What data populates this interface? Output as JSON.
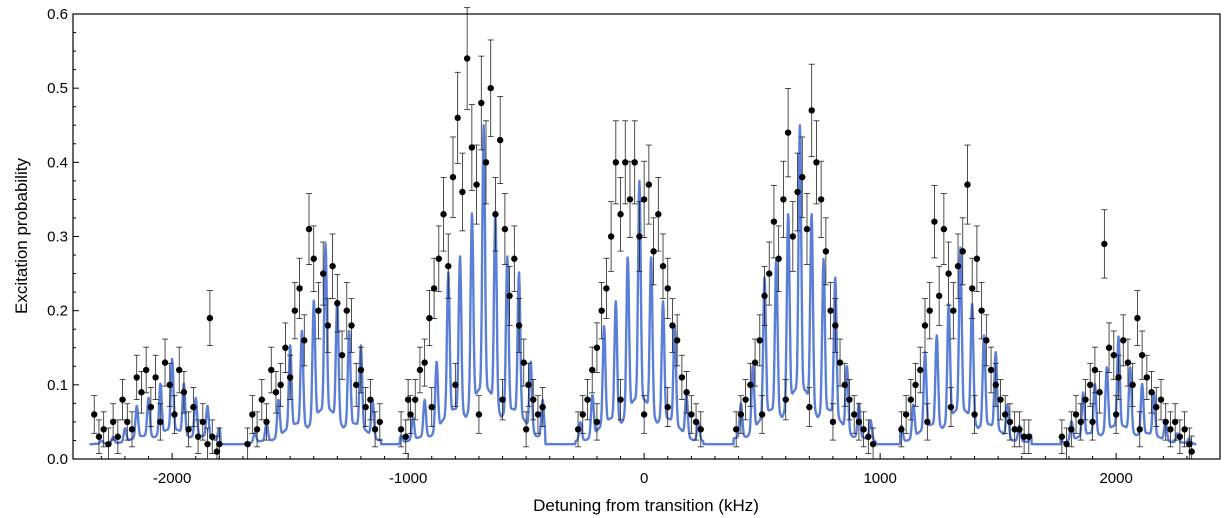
{
  "chart_data": {
    "type": "scatter",
    "xlabel": "Detuning from transition (kHz)",
    "ylabel": "Excitation probability",
    "xlim": [
      -2420,
      2440
    ],
    "ylim": [
      0,
      0.6
    ],
    "x_ticks": [
      -2000,
      -1000,
      0,
      1000,
      2000
    ],
    "x_tick_labels": [
      "-2000",
      "-1000",
      "0",
      "1000",
      "2000"
    ],
    "y_ticks": [
      0,
      0.1,
      0.2,
      0.3,
      0.4,
      0.5,
      0.6
    ],
    "y_tick_labels": [
      "0.0",
      "0.1",
      "0.2",
      "0.3",
      "0.4",
      "0.5",
      "0.6"
    ],
    "grid": false,
    "legend": "none",
    "colors": {
      "fit": "#5b7fd6",
      "data": "#000000",
      "axes": "#000000"
    },
    "fit_baseline": 0.02,
    "fit_sideband_spacing": 50,
    "sidebands": [
      {
        "center": -2000,
        "window": [
          -2335,
          -1795
        ],
        "peak": 0.135
      },
      {
        "center": -1350,
        "window": [
          -1690,
          -1115
        ],
        "peak": 0.29
      },
      {
        "center": -680,
        "window": [
          -1035,
          -420
        ],
        "peak": 0.45
      },
      {
        "center": -20,
        "window": [
          -290,
          250
        ],
        "peak": 0.375
      },
      {
        "center": 660,
        "window": [
          380,
          980
        ],
        "peak": 0.45
      },
      {
        "center": 1340,
        "window": [
          1085,
          1640
        ],
        "peak": 0.285
      },
      {
        "center": 2010,
        "window": [
          1765,
          2330
        ],
        "peak": 0.165
      }
    ],
    "data_points": [
      [
        -2330,
        0.06
      ],
      [
        -2310,
        0.03
      ],
      [
        -2290,
        0.04
      ],
      [
        -2270,
        0.02
      ],
      [
        -2250,
        0.05
      ],
      [
        -2230,
        0.03
      ],
      [
        -2210,
        0.08
      ],
      [
        -2190,
        0.05
      ],
      [
        -2170,
        0.04
      ],
      [
        -2150,
        0.11
      ],
      [
        -2130,
        0.09
      ],
      [
        -2110,
        0.12
      ],
      [
        -2090,
        0.07
      ],
      [
        -2070,
        0.11
      ],
      [
        -2050,
        0.05
      ],
      [
        -2030,
        0.13
      ],
      [
        -2010,
        0.1
      ],
      [
        -1990,
        0.06
      ],
      [
        -1970,
        0.12
      ],
      [
        -1950,
        0.09
      ],
      [
        -1930,
        0.04
      ],
      [
        -1910,
        0.07
      ],
      [
        -1890,
        0.03
      ],
      [
        -1870,
        0.05
      ],
      [
        -1850,
        0.02
      ],
      [
        -1830,
        0.03
      ],
      [
        -1810,
        0.01
      ],
      [
        -1800,
        0.02
      ],
      [
        -1840,
        0.19
      ],
      [
        -1680,
        0.02
      ],
      [
        -1660,
        0.06
      ],
      [
        -1640,
        0.04
      ],
      [
        -1620,
        0.08
      ],
      [
        -1600,
        0.05
      ],
      [
        -1580,
        0.12
      ],
      [
        -1560,
        0.09
      ],
      [
        -1540,
        0.1
      ],
      [
        -1520,
        0.15
      ],
      [
        -1500,
        0.11
      ],
      [
        -1480,
        0.2
      ],
      [
        -1460,
        0.23
      ],
      [
        -1440,
        0.16
      ],
      [
        -1420,
        0.31
      ],
      [
        -1400,
        0.27
      ],
      [
        -1380,
        0.2
      ],
      [
        -1360,
        0.25
      ],
      [
        -1340,
        0.18
      ],
      [
        -1320,
        0.26
      ],
      [
        -1300,
        0.21
      ],
      [
        -1280,
        0.14
      ],
      [
        -1260,
        0.2
      ],
      [
        -1240,
        0.18
      ],
      [
        -1220,
        0.1
      ],
      [
        -1200,
        0.12
      ],
      [
        -1180,
        0.07
      ],
      [
        -1160,
        0.08
      ],
      [
        -1140,
        0.04
      ],
      [
        -1120,
        0.05
      ],
      [
        -1030,
        0.04
      ],
      [
        -1010,
        0.03
      ],
      [
        -990,
        0.06
      ],
      [
        -970,
        0.08
      ],
      [
        -950,
        0.12
      ],
      [
        -930,
        0.13
      ],
      [
        -910,
        0.19
      ],
      [
        -890,
        0.23
      ],
      [
        -870,
        0.27
      ],
      [
        -850,
        0.33
      ],
      [
        -830,
        0.26
      ],
      [
        -810,
        0.38
      ],
      [
        -790,
        0.46
      ],
      [
        -770,
        0.36
      ],
      [
        -750,
        0.54
      ],
      [
        -730,
        0.42
      ],
      [
        -710,
        0.37
      ],
      [
        -690,
        0.48
      ],
      [
        -670,
        0.4
      ],
      [
        -650,
        0.5
      ],
      [
        -630,
        0.33
      ],
      [
        -610,
        0.43
      ],
      [
        -590,
        0.31
      ],
      [
        -570,
        0.22
      ],
      [
        -550,
        0.27
      ],
      [
        -530,
        0.18
      ],
      [
        -510,
        0.13
      ],
      [
        -490,
        0.1
      ],
      [
        -470,
        0.08
      ],
      [
        -450,
        0.06
      ],
      [
        -430,
        0.07
      ],
      [
        -1000,
        0.08
      ],
      [
        -900,
        0.07
      ],
      [
        -800,
        0.1
      ],
      [
        -700,
        0.06
      ],
      [
        -600,
        0.08
      ],
      [
        -500,
        0.04
      ],
      [
        -280,
        0.04
      ],
      [
        -260,
        0.06
      ],
      [
        -240,
        0.08
      ],
      [
        -220,
        0.12
      ],
      [
        -200,
        0.15
      ],
      [
        -180,
        0.2
      ],
      [
        -160,
        0.23
      ],
      [
        -140,
        0.3
      ],
      [
        -120,
        0.4
      ],
      [
        -100,
        0.33
      ],
      [
        -80,
        0.4
      ],
      [
        -60,
        0.35
      ],
      [
        -40,
        0.4
      ],
      [
        -20,
        0.3
      ],
      [
        0,
        0.35
      ],
      [
        20,
        0.37
      ],
      [
        40,
        0.28
      ],
      [
        60,
        0.33
      ],
      [
        80,
        0.26
      ],
      [
        100,
        0.23
      ],
      [
        120,
        0.18
      ],
      [
        140,
        0.16
      ],
      [
        160,
        0.11
      ],
      [
        180,
        0.09
      ],
      [
        200,
        0.06
      ],
      [
        220,
        0.05
      ],
      [
        240,
        0.04
      ],
      [
        -200,
        0.05
      ],
      [
        -100,
        0.08
      ],
      [
        0,
        0.06
      ],
      [
        100,
        0.07
      ],
      [
        390,
        0.04
      ],
      [
        410,
        0.06
      ],
      [
        430,
        0.08
      ],
      [
        450,
        0.1
      ],
      [
        470,
        0.13
      ],
      [
        490,
        0.16
      ],
      [
        510,
        0.22
      ],
      [
        530,
        0.25
      ],
      [
        550,
        0.32
      ],
      [
        570,
        0.27
      ],
      [
        590,
        0.35
      ],
      [
        610,
        0.44
      ],
      [
        630,
        0.3
      ],
      [
        650,
        0.36
      ],
      [
        670,
        0.38
      ],
      [
        690,
        0.31
      ],
      [
        710,
        0.47
      ],
      [
        730,
        0.4
      ],
      [
        750,
        0.35
      ],
      [
        770,
        0.28
      ],
      [
        790,
        0.2
      ],
      [
        810,
        0.18
      ],
      [
        830,
        0.13
      ],
      [
        850,
        0.1
      ],
      [
        870,
        0.08
      ],
      [
        890,
        0.06
      ],
      [
        910,
        0.05
      ],
      [
        930,
        0.04
      ],
      [
        950,
        0.03
      ],
      [
        970,
        0.02
      ],
      [
        500,
        0.06
      ],
      [
        600,
        0.08
      ],
      [
        700,
        0.07
      ],
      [
        800,
        0.05
      ],
      [
        1090,
        0.04
      ],
      [
        1110,
        0.06
      ],
      [
        1130,
        0.08
      ],
      [
        1150,
        0.1
      ],
      [
        1170,
        0.12
      ],
      [
        1190,
        0.18
      ],
      [
        1210,
        0.2
      ],
      [
        1230,
        0.32
      ],
      [
        1250,
        0.22
      ],
      [
        1270,
        0.31
      ],
      [
        1290,
        0.25
      ],
      [
        1310,
        0.2
      ],
      [
        1330,
        0.26
      ],
      [
        1350,
        0.28
      ],
      [
        1370,
        0.37
      ],
      [
        1390,
        0.23
      ],
      [
        1410,
        0.27
      ],
      [
        1430,
        0.2
      ],
      [
        1450,
        0.16
      ],
      [
        1470,
        0.12
      ],
      [
        1490,
        0.1
      ],
      [
        1510,
        0.08
      ],
      [
        1530,
        0.06
      ],
      [
        1550,
        0.05
      ],
      [
        1570,
        0.04
      ],
      [
        1590,
        0.04
      ],
      [
        1610,
        0.03
      ],
      [
        1630,
        0.03
      ],
      [
        1200,
        0.05
      ],
      [
        1300,
        0.07
      ],
      [
        1400,
        0.06
      ],
      [
        1770,
        0.03
      ],
      [
        1790,
        0.02
      ],
      [
        1810,
        0.04
      ],
      [
        1830,
        0.06
      ],
      [
        1850,
        0.05
      ],
      [
        1870,
        0.08
      ],
      [
        1890,
        0.1
      ],
      [
        1910,
        0.12
      ],
      [
        1930,
        0.09
      ],
      [
        1950,
        0.29
      ],
      [
        1970,
        0.15
      ],
      [
        1990,
        0.14
      ],
      [
        2010,
        0.11
      ],
      [
        2030,
        0.16
      ],
      [
        2050,
        0.13
      ],
      [
        2070,
        0.1
      ],
      [
        2090,
        0.19
      ],
      [
        2110,
        0.14
      ],
      [
        2130,
        0.11
      ],
      [
        2150,
        0.09
      ],
      [
        2170,
        0.07
      ],
      [
        2190,
        0.08
      ],
      [
        2210,
        0.05
      ],
      [
        2230,
        0.04
      ],
      [
        2250,
        0.05
      ],
      [
        2270,
        0.03
      ],
      [
        2290,
        0.04
      ],
      [
        2310,
        0.02
      ],
      [
        2320,
        0.01
      ],
      [
        1900,
        0.05
      ],
      [
        2000,
        0.06
      ],
      [
        2100,
        0.04
      ]
    ]
  }
}
